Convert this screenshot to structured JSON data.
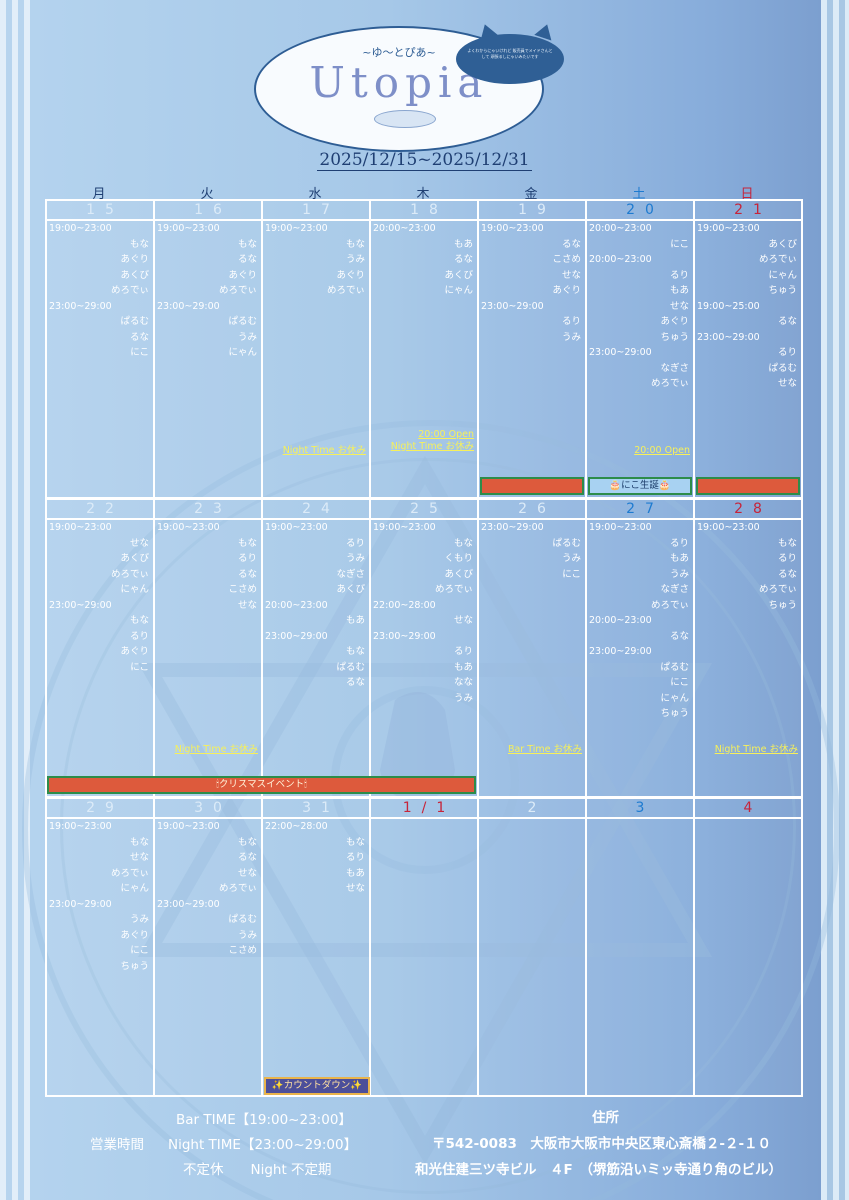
{
  "logo": {
    "tagline": "~ゆ～とぴあ~",
    "title": "Utopia",
    "badge_text": "よくわからにゃいけれど 販売員でメイドさんとして 頑張るしにゃいみたいです"
  },
  "period": "2025/12/15~2025/12/31",
  "weekdays": [
    "月",
    "火",
    "水",
    "木",
    "金",
    "土",
    "日"
  ],
  "weeks": [
    {
      "days": [
        {
          "date": "15",
          "lines": [
            [
              "t",
              "19:00~23:00"
            ],
            [
              "n",
              "もな"
            ],
            [
              "n",
              "あぐり"
            ],
            [
              "n",
              "あくび"
            ],
            [
              "n",
              "めろでぃ"
            ],
            [
              "t",
              "23:00~29:00"
            ],
            [
              "n",
              "ぱるむ"
            ],
            [
              "n",
              "るな"
            ],
            [
              "n",
              "にこ"
            ]
          ]
        },
        {
          "date": "16",
          "lines": [
            [
              "t",
              "19:00~23:00"
            ],
            [
              "n",
              "もな"
            ],
            [
              "n",
              "るな"
            ],
            [
              "n",
              "あぐり"
            ],
            [
              "n",
              "めろでぃ"
            ],
            [
              "t",
              "23:00~29:00"
            ],
            [
              "n",
              "ぱるむ"
            ],
            [
              "n",
              "うみ"
            ],
            [
              "n",
              "にゃん"
            ]
          ]
        },
        {
          "date": "17",
          "lines": [
            [
              "t",
              "19:00~23:00"
            ],
            [
              "n",
              "もな"
            ],
            [
              "n",
              "うみ"
            ],
            [
              "n",
              "あぐり"
            ],
            [
              "n",
              "めろでぃ"
            ]
          ],
          "notes": [
            "Night Time お休み"
          ]
        },
        {
          "date": "18",
          "lines": [
            [
              "t",
              "20:00~23:00"
            ],
            [
              "n",
              "もあ"
            ],
            [
              "n",
              "るな"
            ],
            [
              "n",
              "あくび"
            ],
            [
              "n",
              "にゃん"
            ]
          ],
          "notes": [
            "20:00 Open",
            "Night Time お休み"
          ]
        },
        {
          "date": "19",
          "lines": [
            [
              "t",
              "19:00~23:00"
            ],
            [
              "n",
              "るな"
            ],
            [
              "n",
              "こさめ"
            ],
            [
              "n",
              "せな"
            ],
            [
              "n",
              "あぐり"
            ],
            [
              "t",
              "23:00~29:00"
            ],
            [
              "n",
              "るり"
            ],
            [
              "n",
              "うみ"
            ]
          ]
        },
        {
          "date": "20",
          "lines": [
            [
              "t",
              "20:00~23:00"
            ],
            [
              "n",
              "にこ"
            ],
            [
              "t",
              "20:00~23:00"
            ],
            [
              "n",
              "るり"
            ],
            [
              "n",
              "もあ"
            ],
            [
              "n",
              "せな"
            ],
            [
              "n",
              "あぐり"
            ],
            [
              "n",
              "ちゅう"
            ],
            [
              "t",
              "23:00~29:00"
            ],
            [
              "n",
              "なぎさ"
            ],
            [
              "n",
              "めろでぃ"
            ]
          ],
          "notes": [
            "20:00 Open"
          ]
        },
        {
          "date": "21",
          "lines": [
            [
              "t",
              "19:00~23:00"
            ],
            [
              "n",
              "あくび"
            ],
            [
              "n",
              "めろでぃ"
            ],
            [
              "n",
              "にゃん"
            ],
            [
              "n",
              "ちゅう"
            ],
            [
              "t",
              "19:00~25:00"
            ],
            [
              "n",
              "るな"
            ],
            [
              "t",
              "23:00~29:00"
            ],
            [
              "n",
              "るり"
            ],
            [
              "n",
              "ぱるむ"
            ],
            [
              "n",
              "せな"
            ]
          ]
        }
      ]
    },
    {
      "days": [
        {
          "date": "22",
          "lines": [
            [
              "t",
              "19:00~23:00"
            ],
            [
              "n",
              "せな"
            ],
            [
              "n",
              "あくび"
            ],
            [
              "n",
              "めろでぃ"
            ],
            [
              "n",
              "にゃん"
            ],
            [
              "t",
              "23:00~29:00"
            ],
            [
              "n",
              "もな"
            ],
            [
              "n",
              "るり"
            ],
            [
              "n",
              "あぐり"
            ],
            [
              "n",
              "にこ"
            ]
          ]
        },
        {
          "date": "23",
          "lines": [
            [
              "t",
              "19:00~23:00"
            ],
            [
              "n",
              "もな"
            ],
            [
              "n",
              "るり"
            ],
            [
              "n",
              "るな"
            ],
            [
              "n",
              "こさめ"
            ],
            [
              "n",
              "せな"
            ]
          ],
          "notes": [
            "Night Time お休み"
          ]
        },
        {
          "date": "24",
          "lines": [
            [
              "t",
              "19:00~23:00"
            ],
            [
              "n",
              "るり"
            ],
            [
              "n",
              "うみ"
            ],
            [
              "n",
              "なぎさ"
            ],
            [
              "n",
              "あくび"
            ],
            [
              "t",
              "20:00~23:00"
            ],
            [
              "n",
              "もあ"
            ],
            [
              "t",
              "23:00~29:00"
            ],
            [
              "n",
              "もな"
            ],
            [
              "n",
              "ぱるむ"
            ],
            [
              "n",
              "るな"
            ]
          ]
        },
        {
          "date": "25",
          "lines": [
            [
              "t",
              "19:00~23:00"
            ],
            [
              "n",
              "もな"
            ],
            [
              "n",
              "くもり"
            ],
            [
              "n",
              "あくび"
            ],
            [
              "n",
              "めろでぃ"
            ],
            [
              "t",
              "22:00~28:00"
            ],
            [
              "n",
              "せな"
            ],
            [
              "t",
              "23:00~29:00"
            ],
            [
              "n",
              "るり"
            ],
            [
              "n",
              "もあ"
            ],
            [
              "n",
              "なな"
            ],
            [
              "n",
              "うみ"
            ]
          ]
        },
        {
          "date": "26",
          "lines": [
            [
              "t",
              "23:00~29:00"
            ],
            [
              "n",
              "ぱるむ"
            ],
            [
              "n",
              "うみ"
            ],
            [
              "n",
              "にこ"
            ]
          ],
          "notes": [
            "Bar Time お休み"
          ]
        },
        {
          "date": "27",
          "lines": [
            [
              "t",
              "19:00~23:00"
            ],
            [
              "n",
              "るり"
            ],
            [
              "n",
              "もあ"
            ],
            [
              "n",
              "うみ"
            ],
            [
              "n",
              "なぎさ"
            ],
            [
              "n",
              "めろでぃ"
            ],
            [
              "t",
              "20:00~23:00"
            ],
            [
              "n",
              "るな"
            ],
            [
              "t",
              "23:00~29:00"
            ],
            [
              "n",
              "ぱるむ"
            ],
            [
              "n",
              "にこ"
            ],
            [
              "n",
              "にゃん"
            ],
            [
              "n",
              "ちゅう"
            ]
          ]
        },
        {
          "date": "28",
          "lines": [
            [
              "t",
              "19:00~23:00"
            ],
            [
              "n",
              "もな"
            ],
            [
              "n",
              "るり"
            ],
            [
              "n",
              "るな"
            ],
            [
              "n",
              "めろでぃ"
            ],
            [
              "n",
              "ちゅう"
            ]
          ],
          "notes": [
            "Night Time お休み"
          ]
        }
      ]
    },
    {
      "days": [
        {
          "date": "29",
          "lines": [
            [
              "t",
              "19:00~23:00"
            ],
            [
              "n",
              "もな"
            ],
            [
              "n",
              "せな"
            ],
            [
              "n",
              "めろでぃ"
            ],
            [
              "n",
              "にゃん"
            ],
            [
              "t",
              "23:00~29:00"
            ],
            [
              "n",
              "うみ"
            ],
            [
              "n",
              "あぐり"
            ],
            [
              "n",
              "にこ"
            ],
            [
              "n",
              "ちゅう"
            ]
          ]
        },
        {
          "date": "30",
          "lines": [
            [
              "t",
              "19:00~23:00"
            ],
            [
              "n",
              "もな"
            ],
            [
              "n",
              "るな"
            ],
            [
              "n",
              "せな"
            ],
            [
              "n",
              "めろでぃ"
            ],
            [
              "t",
              "23:00~29:00"
            ],
            [
              "n",
              "ぱるむ"
            ],
            [
              "n",
              "うみ"
            ],
            [
              "n",
              "こさめ"
            ]
          ]
        },
        {
          "date": "31",
          "lines": [
            [
              "t",
              "22:00~28:00"
            ],
            [
              "n",
              "もな"
            ],
            [
              "n",
              "るり"
            ],
            [
              "n",
              "もあ"
            ],
            [
              "n",
              "せな"
            ]
          ]
        },
        {
          "date": "1/1",
          "lines": []
        },
        {
          "date": "2",
          "lines": []
        },
        {
          "date": "3",
          "lines": []
        },
        {
          "date": "4",
          "lines": []
        }
      ]
    }
  ],
  "events": {
    "birthday": "🎂にこ生誕🎂",
    "christmas": "🕯クリスマスイベント🕯",
    "countdown": "✨カウントダウン✨"
  },
  "footer": {
    "bar_time": "Bar TIME【19:00~23:00】",
    "hours_label": "営業時間",
    "night_time": "Night TIME【23:00~29:00】",
    "holiday": "不定休　　Night 不定期",
    "address_label": "住所",
    "address1": "〒542-0083　大阪市大阪市中央区東心斎橋２-２-１０",
    "address2": "和光住建三ツ寺ビル　４F　（堺筋沿いミッ寺通り角のビル）"
  },
  "colors": {
    "saturday": "#1e7bd0",
    "sunday": "#c6243a",
    "note": "#f7f05a",
    "event": "#dd5a3c"
  }
}
